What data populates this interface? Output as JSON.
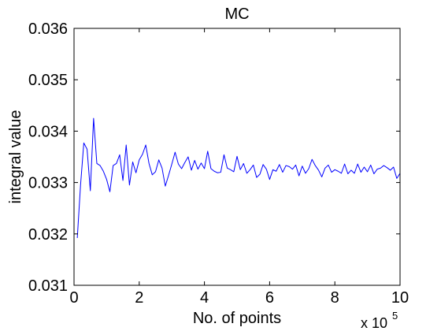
{
  "chart_data": {
    "type": "line",
    "title": "MC",
    "xlabel": "No. of points",
    "ylabel": "integral value",
    "x_multiplier": {
      "base": "x 10",
      "exponent": "5"
    },
    "xlim": [
      0,
      10
    ],
    "ylim": [
      0.031,
      0.036
    ],
    "x_ticks": [
      0,
      2,
      4,
      6,
      8,
      10
    ],
    "x_tick_labels": [
      "0",
      "2",
      "4",
      "6",
      "8",
      "10"
    ],
    "y_ticks": [
      0.031,
      0.032,
      0.033,
      0.034,
      0.035,
      0.036
    ],
    "y_tick_labels": [
      "0.031",
      "0.032",
      "0.033",
      "0.034",
      "0.035",
      "0.036"
    ],
    "grid": false,
    "series": [
      {
        "color": "#0000ff",
        "x": [
          0.1,
          0.2,
          0.3,
          0.4,
          0.5,
          0.6,
          0.7,
          0.8,
          0.9,
          1.0,
          1.1,
          1.2,
          1.3,
          1.4,
          1.5,
          1.6,
          1.7,
          1.8,
          1.9,
          2.0,
          2.1,
          2.2,
          2.3,
          2.4,
          2.5,
          2.6,
          2.7,
          2.8,
          2.9,
          3.0,
          3.1,
          3.2,
          3.3,
          3.4,
          3.5,
          3.6,
          3.7,
          3.8,
          3.9,
          4.0,
          4.1,
          4.2,
          4.3,
          4.4,
          4.5,
          4.6,
          4.7,
          4.8,
          4.9,
          5.0,
          5.1,
          5.2,
          5.3,
          5.4,
          5.5,
          5.6,
          5.7,
          5.8,
          5.9,
          6.0,
          6.1,
          6.2,
          6.3,
          6.4,
          6.5,
          6.6,
          6.7,
          6.8,
          6.9,
          7.0,
          7.1,
          7.2,
          7.3,
          7.4,
          7.5,
          7.6,
          7.7,
          7.8,
          7.9,
          8.0,
          8.1,
          8.2,
          8.3,
          8.4,
          8.5,
          8.6,
          8.7,
          8.8,
          8.9,
          9.0,
          9.1,
          9.2,
          9.3,
          9.4,
          9.5,
          9.6,
          9.7,
          9.8,
          9.9,
          10.0
        ],
        "y": [
          0.03192,
          0.03295,
          0.03377,
          0.03365,
          0.03284,
          0.03425,
          0.03337,
          0.03333,
          0.03322,
          0.03306,
          0.03282,
          0.03333,
          0.03337,
          0.03354,
          0.03304,
          0.03373,
          0.03295,
          0.0334,
          0.03319,
          0.03344,
          0.03355,
          0.03373,
          0.03337,
          0.03315,
          0.03321,
          0.03344,
          0.03328,
          0.03293,
          0.03314,
          0.03336,
          0.03359,
          0.03336,
          0.03327,
          0.03339,
          0.0335,
          0.03324,
          0.03343,
          0.03326,
          0.03338,
          0.03327,
          0.03361,
          0.03327,
          0.03322,
          0.03319,
          0.0332,
          0.03354,
          0.03328,
          0.03325,
          0.03321,
          0.03351,
          0.03325,
          0.03337,
          0.03318,
          0.03325,
          0.03334,
          0.0331,
          0.03316,
          0.03335,
          0.03326,
          0.03306,
          0.03325,
          0.03322,
          0.03335,
          0.0332,
          0.03333,
          0.03331,
          0.03326,
          0.03334,
          0.03313,
          0.03332,
          0.03318,
          0.03327,
          0.03345,
          0.03333,
          0.03324,
          0.03311,
          0.03328,
          0.03334,
          0.0332,
          0.03325,
          0.03322,
          0.03318,
          0.03336,
          0.03317,
          0.03324,
          0.03318,
          0.03336,
          0.0332,
          0.0333,
          0.03321,
          0.03334,
          0.03317,
          0.03326,
          0.03328,
          0.03333,
          0.03329,
          0.03324,
          0.0333,
          0.03308,
          0.03318
        ]
      }
    ]
  }
}
